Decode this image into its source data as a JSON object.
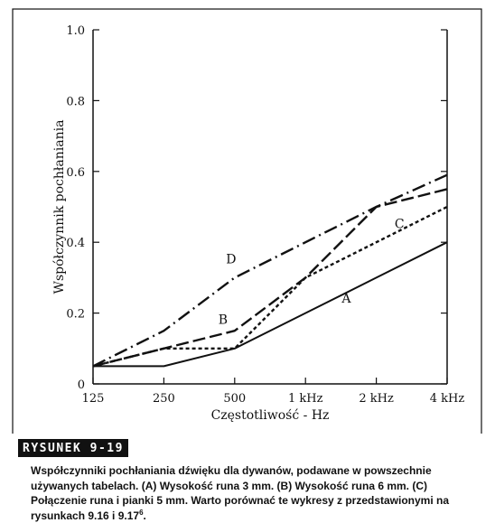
{
  "figure_label": "RYSUNEK 9-19",
  "caption": {
    "text": "Współczynniki pochłaniania dźwięku dla dywanów, podawane w powszechnie używanych tabelach. (A) Wysokość runa 3 mm. (B) Wysokość runa 6 mm. (C) Połączenie runa i pianki 5 mm. Warto porównać te wykresy z przedstawionymi na rysunkach 9.16 i 9.17",
    "superscript": "6",
    "end": "."
  },
  "chart_data": {
    "type": "line",
    "title": "",
    "xlabel": "Częstotliwość - Hz",
    "ylabel": "Współczynnik pochłaniania",
    "categories": [
      "125",
      "250",
      "500",
      "1 kHz",
      "2 kHz",
      "4 kHz"
    ],
    "y_ticks": [
      "0",
      "0.2",
      "0.4",
      "0.6",
      "0.8",
      "1.0"
    ],
    "y_tick_values": [
      0,
      0.2,
      0.4,
      0.6,
      0.8,
      1.0
    ],
    "ylim": [
      0,
      1.0
    ],
    "x_scale": "log2 (octave bands)",
    "grid": false,
    "series": [
      {
        "name": "A",
        "style": "solid",
        "values": [
          0.05,
          0.05,
          0.1,
          0.2,
          0.3,
          0.4
        ]
      },
      {
        "name": "B",
        "style": "long-dash",
        "values": [
          0.05,
          0.1,
          0.15,
          0.3,
          0.5,
          0.55
        ]
      },
      {
        "name": "C",
        "style": "short-dash",
        "values": [
          0.05,
          0.1,
          0.1,
          0.3,
          0.4,
          0.5
        ]
      },
      {
        "name": "D",
        "style": "dash-dot",
        "values": [
          0.05,
          0.15,
          0.3,
          0.4,
          0.5,
          0.59
        ]
      }
    ],
    "colors": {
      "line": "#111111",
      "background": "#ffffff"
    }
  }
}
